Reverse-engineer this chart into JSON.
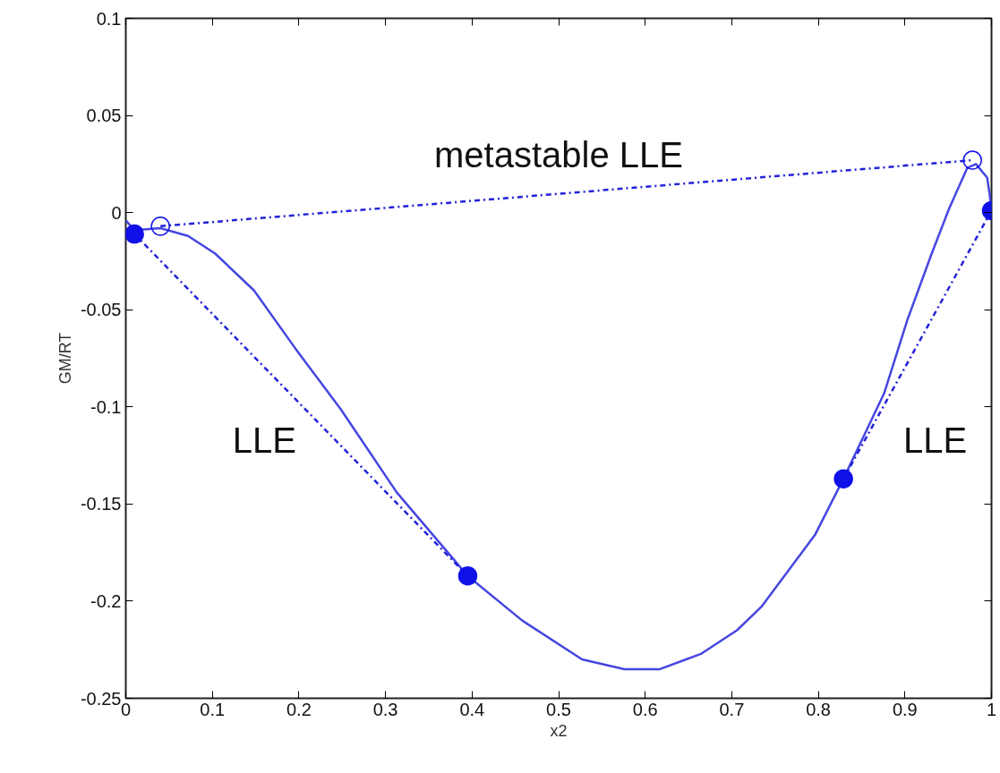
{
  "chart_data": {
    "type": "line",
    "xlabel": "x2",
    "ylabel": "GM/RT",
    "xlim": [
      0,
      1
    ],
    "ylim": [
      -0.25,
      0.1
    ],
    "xticks": [
      0,
      0.1,
      0.2,
      0.3,
      0.4,
      0.5,
      0.6,
      0.7,
      0.8,
      0.9,
      1
    ],
    "yticks": [
      -0.25,
      -0.2,
      -0.15,
      -0.1,
      -0.05,
      0,
      0.05,
      0.1
    ],
    "grid": false,
    "series": [
      {
        "color": "#4646e0",
        "line_style": "solid",
        "marker": "none",
        "x": [
          0,
          0.01,
          0.04,
          0.072,
          0.103,
          0.148,
          0.196,
          0.248,
          0.313,
          0.395,
          0.458,
          0.527,
          0.576,
          0.617,
          0.665,
          0.706,
          0.734,
          0.796,
          0.829,
          0.876,
          0.903,
          0.931,
          0.951,
          0.972,
          0.982,
          0.995,
          0.998,
          1.0
        ],
        "values": [
          -0.004,
          -0.009,
          -0.008,
          -0.012,
          -0.021,
          -0.04,
          -0.07,
          -0.101,
          -0.144,
          -0.187,
          -0.21,
          -0.23,
          -0.235,
          -0.235,
          -0.227,
          -0.215,
          -0.203,
          -0.166,
          -0.137,
          -0.093,
          -0.055,
          -0.021,
          0.002,
          0.023,
          0.025,
          0.018,
          0.009,
          0.001
        ]
      },
      {
        "color": "#2222d8",
        "line_style": "dashdot",
        "marker": "none",
        "x": [
          0.04,
          0.978
        ],
        "values": [
          -0.007,
          0.027
        ]
      },
      {
        "color": "#2222d8",
        "line_style": "dashdot",
        "marker": "none",
        "x": [
          0.01,
          0.395
        ],
        "values": [
          -0.011,
          -0.187
        ]
      },
      {
        "color": "#2222d8",
        "line_style": "dashdot",
        "marker": "none",
        "x": [
          0.829,
          1.0
        ],
        "values": [
          -0.137,
          0.001
        ]
      },
      {
        "type": "scatter",
        "color": "#1010e8",
        "marker": "circle",
        "x": [
          0.01,
          0.395,
          0.829,
          1.0
        ],
        "values": [
          -0.011,
          -0.187,
          -0.137,
          0.001
        ]
      },
      {
        "type": "scatter",
        "color": "#1010e8",
        "marker": "circle_open",
        "x": [
          0.04,
          0.978
        ],
        "values": [
          -0.007,
          0.027
        ]
      }
    ],
    "annotations": [
      "metastable LLE",
      "LLE",
      "LLE"
    ]
  }
}
